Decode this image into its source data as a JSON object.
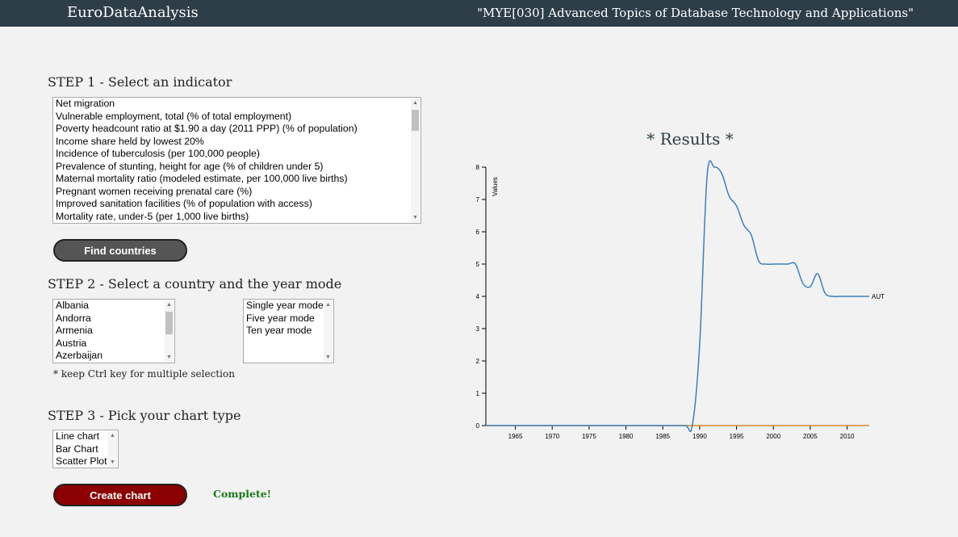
{
  "header": {
    "brand": "EuroDataAnalysis",
    "course": "\"MYE[030] Advanced Topics of Database Technology and Applications\""
  },
  "step1": {
    "title": "STEP 1 - Select an indicator",
    "indicators": [
      "Net migration",
      "Vulnerable employment, total (% of total employment)",
      "Poverty headcount ratio at $1.90 a day (2011 PPP) (% of population)",
      "Income share held by lowest 20%",
      "Incidence of tuberculosis (per 100,000 people)",
      "Prevalence of stunting, height for age (% of children under 5)",
      "Maternal mortality ratio (modeled estimate, per 100,000 live births)",
      "Pregnant women receiving prenatal care (%)",
      "Improved sanitation facilities (% of population with access)",
      "Mortality rate, under-5 (per 1,000 live births)"
    ],
    "button_label": "Find countries"
  },
  "step2": {
    "title": "STEP 2 - Select a country and the year mode",
    "countries": [
      "Albania",
      "Andorra",
      "Armenia",
      "Austria",
      "Azerbaijan"
    ],
    "year_modes": [
      "Single year mode",
      "Five year mode",
      "Ten year mode"
    ],
    "note": "* keep Ctrl key for multiple selection"
  },
  "step3": {
    "title": "STEP 3 - Pick your chart type",
    "chart_types": [
      "Line chart",
      "Bar Chart",
      "Scatter Plot"
    ],
    "button_label": "Create chart",
    "status": "Complete!"
  },
  "results": {
    "title": "* Results *"
  },
  "colors": {
    "header_bg": "#2d3e48",
    "page_bg": "#f2f2f2",
    "series_aut": "#3a7fc0",
    "series_zero": "#f39c34",
    "status_green": "#1a7a1a",
    "button_red": "#8b0000",
    "button_gray": "#555555"
  },
  "chart_data": {
    "type": "line",
    "ylabel": "Values",
    "xlabel": "",
    "xlim": [
      1961,
      2013
    ],
    "ylim": [
      0,
      8
    ],
    "x_ticks": [
      1965,
      1970,
      1975,
      1980,
      1985,
      1990,
      1995,
      2000,
      2005,
      2010
    ],
    "y_ticks": [
      0,
      1,
      2,
      3,
      4,
      5,
      6,
      7,
      8
    ],
    "series": [
      {
        "name": "AUT",
        "x": [
          1961,
          1965,
          1970,
          1975,
          1980,
          1985,
          1988,
          1989,
          1990,
          1991,
          1992,
          1993,
          1994,
          1995,
          1996,
          1997,
          1998,
          1999,
          2000,
          2001,
          2002,
          2003,
          2004,
          2005,
          2006,
          2007,
          2008,
          2009,
          2010,
          2011,
          2012,
          2013
        ],
        "values": [
          0,
          0,
          0,
          0,
          0,
          0,
          0,
          0,
          2.5,
          7.7,
          8,
          7.8,
          7.1,
          6.8,
          6.2,
          5.9,
          5.1,
          5,
          5,
          5,
          5,
          5,
          4.4,
          4.3,
          4.7,
          4.1,
          4,
          4,
          4,
          4,
          4,
          4
        ]
      },
      {
        "x": [
          1961,
          2013
        ],
        "values": [
          0,
          0
        ]
      }
    ]
  }
}
